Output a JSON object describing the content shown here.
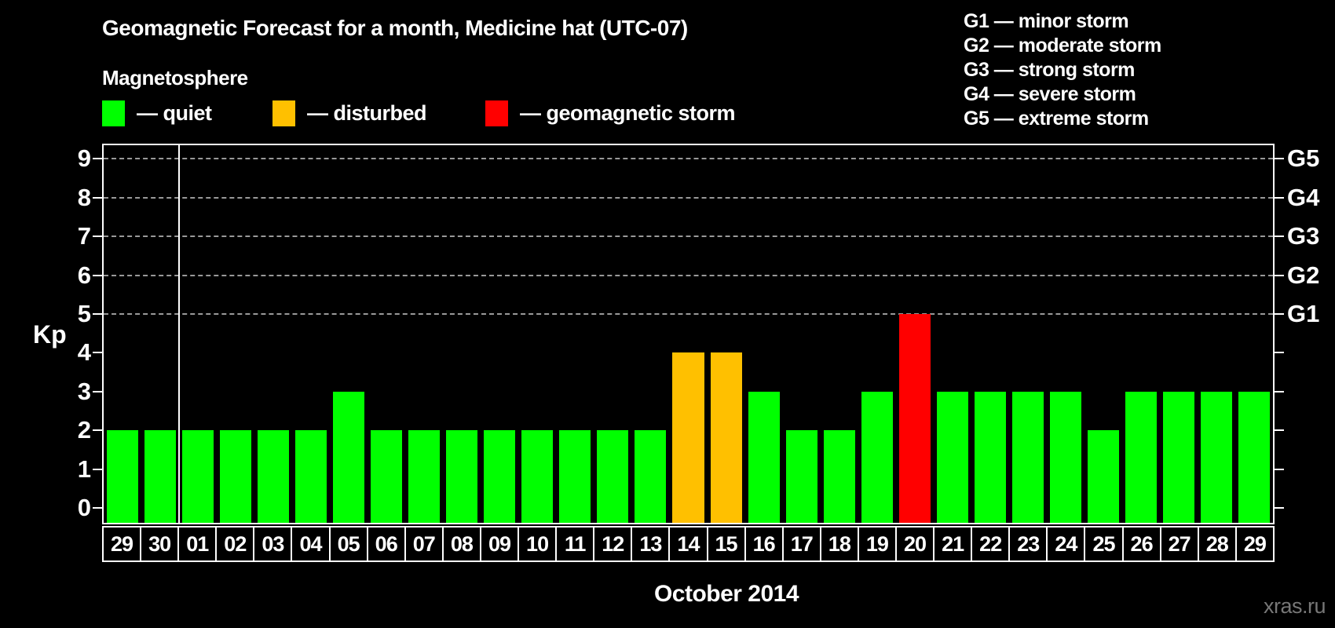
{
  "header": {
    "title": "Geomagnetic Forecast for a month, Medicine hat (UTC-07)",
    "subtitle": "Magnetosphere",
    "legend": [
      {
        "name": "quiet",
        "label": "— quiet",
        "color": "#00ff00"
      },
      {
        "name": "disturbed",
        "label": "— disturbed",
        "color": "#ffc000"
      },
      {
        "name": "storm",
        "label": "— geomagnetic storm",
        "color": "#ff0000"
      }
    ],
    "g_scale_legend": [
      "G1 — minor storm",
      "G2 — moderate storm",
      "G3 — strong storm",
      "G4 — severe storm",
      "G5 — extreme storm"
    ]
  },
  "chart_data": {
    "type": "bar",
    "title": "Geomagnetic Forecast for a month, Medicine hat (UTC-07)",
    "xlabel": "October 2014",
    "ylabel": "Kp",
    "ylim": [
      0,
      9
    ],
    "yticks": [
      0,
      1,
      2,
      3,
      4,
      5,
      6,
      7,
      8,
      9
    ],
    "gridlines_at": [
      5,
      6,
      7,
      8,
      9
    ],
    "grid": "dashed-horizontal",
    "legend_position": "top-left",
    "right_axis_labels": [
      {
        "kp": 5,
        "label": "G1"
      },
      {
        "kp": 6,
        "label": "G2"
      },
      {
        "kp": 7,
        "label": "G3"
      },
      {
        "kp": 8,
        "label": "G4"
      },
      {
        "kp": 9,
        "label": "G5"
      }
    ],
    "status_colors": {
      "quiet": "#00ff00",
      "disturbed": "#ffc000",
      "storm": "#ff0000"
    },
    "month_separator_after_index": 1,
    "categories": [
      "29",
      "30",
      "01",
      "02",
      "03",
      "04",
      "05",
      "06",
      "07",
      "08",
      "09",
      "10",
      "11",
      "12",
      "13",
      "14",
      "15",
      "16",
      "17",
      "18",
      "19",
      "20",
      "21",
      "22",
      "23",
      "24",
      "25",
      "26",
      "27",
      "28",
      "29"
    ],
    "values": [
      2,
      2,
      2,
      2,
      2,
      2,
      3,
      2,
      2,
      2,
      2,
      2,
      2,
      2,
      2,
      4,
      4,
      3,
      2,
      2,
      3,
      5,
      3,
      3,
      3,
      3,
      2,
      3,
      3,
      3,
      3
    ],
    "statuses": [
      "quiet",
      "quiet",
      "quiet",
      "quiet",
      "quiet",
      "quiet",
      "quiet",
      "quiet",
      "quiet",
      "quiet",
      "quiet",
      "quiet",
      "quiet",
      "quiet",
      "quiet",
      "disturbed",
      "disturbed",
      "quiet",
      "quiet",
      "quiet",
      "quiet",
      "storm",
      "quiet",
      "quiet",
      "quiet",
      "quiet",
      "quiet",
      "quiet",
      "quiet",
      "quiet",
      "quiet"
    ]
  },
  "footer": {
    "watermark": "xras.ru"
  }
}
